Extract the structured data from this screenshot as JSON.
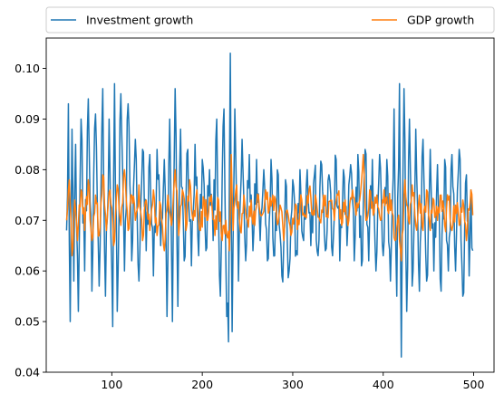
{
  "chart_data": {
    "type": "line",
    "title": "",
    "xlabel": "",
    "ylabel": "",
    "xlim": [
      27.5,
      522.5
    ],
    "ylim": [
      0.04,
      0.106
    ],
    "xticks": [
      100,
      200,
      300,
      400,
      500
    ],
    "xtick_labels": [
      "100",
      "200",
      "300",
      "400",
      "500"
    ],
    "yticks": [
      0.04,
      0.05,
      0.06,
      0.07,
      0.08,
      0.09,
      0.1
    ],
    "ytick_labels": [
      "0.04",
      "0.05",
      "0.06",
      "0.07",
      "0.08",
      "0.09",
      "0.10"
    ],
    "grid": false,
    "legend_placement": "top, above plot, two columns",
    "x_start": 50,
    "x_end": 499,
    "series": [
      {
        "name": "Investment growth",
        "color": "#1f77b4",
        "sampled_points": [
          [
            50,
            0.068
          ],
          [
            52,
            0.093
          ],
          [
            54,
            0.05
          ],
          [
            56,
            0.088
          ],
          [
            58,
            0.058
          ],
          [
            60,
            0.085
          ],
          [
            63,
            0.052
          ],
          [
            66,
            0.09
          ],
          [
            70,
            0.06
          ],
          [
            74,
            0.094
          ],
          [
            78,
            0.056
          ],
          [
            82,
            0.091
          ],
          [
            86,
            0.057
          ],
          [
            90,
            0.096
          ],
          [
            93,
            0.055
          ],
          [
            97,
            0.09
          ],
          [
            101,
            0.049
          ],
          [
            103,
            0.097
          ],
          [
            106,
            0.052
          ],
          [
            110,
            0.095
          ],
          [
            114,
            0.06
          ],
          [
            118,
            0.093
          ],
          [
            122,
            0.062
          ],
          [
            126,
            0.086
          ],
          [
            130,
            0.058
          ],
          [
            134,
            0.084
          ],
          [
            138,
            0.064
          ],
          [
            142,
            0.083
          ],
          [
            146,
            0.059
          ],
          [
            150,
            0.084
          ],
          [
            154,
            0.065
          ],
          [
            158,
            0.082
          ],
          [
            161,
            0.051
          ],
          [
            164,
            0.09
          ],
          [
            167,
            0.05
          ],
          [
            170,
            0.096
          ],
          [
            173,
            0.053
          ],
          [
            176,
            0.088
          ],
          [
            180,
            0.062
          ],
          [
            184,
            0.084
          ],
          [
            188,
            0.061
          ],
          [
            192,
            0.085
          ],
          [
            196,
            0.063
          ],
          [
            200,
            0.082
          ],
          [
            204,
            0.064
          ],
          [
            208,
            0.08
          ],
          [
            212,
            0.066
          ],
          [
            216,
            0.09
          ],
          [
            220,
            0.055
          ],
          [
            224,
            0.092
          ],
          [
            227,
            0.051
          ],
          [
            229,
            0.046
          ],
          [
            231,
            0.103
          ],
          [
            233,
            0.048
          ],
          [
            236,
            0.092
          ],
          [
            240,
            0.058
          ],
          [
            244,
            0.086
          ],
          [
            248,
            0.062
          ],
          [
            252,
            0.083
          ],
          [
            256,
            0.064
          ],
          [
            260,
            0.082
          ],
          [
            264,
            0.066
          ],
          [
            268,
            0.08
          ],
          [
            272,
            0.062
          ],
          [
            276,
            0.082
          ],
          [
            280,
            0.063
          ],
          [
            284,
            0.079
          ],
          [
            288,
            0.059
          ],
          [
            292,
            0.078
          ],
          [
            296,
            0.06
          ],
          [
            300,
            0.078
          ],
          [
            304,
            0.064
          ],
          [
            308,
            0.08
          ],
          [
            312,
            0.066
          ],
          [
            316,
            0.08
          ],
          [
            320,
            0.065
          ],
          [
            324,
            0.079
          ],
          [
            328,
            0.063
          ],
          [
            332,
            0.081
          ],
          [
            336,
            0.064
          ],
          [
            340,
            0.079
          ],
          [
            344,
            0.063
          ],
          [
            348,
            0.082
          ],
          [
            352,
            0.062
          ],
          [
            356,
            0.08
          ],
          [
            360,
            0.065
          ],
          [
            364,
            0.081
          ],
          [
            368,
            0.062
          ],
          [
            372,
            0.083
          ],
          [
            376,
            0.061
          ],
          [
            380,
            0.084
          ],
          [
            384,
            0.062
          ],
          [
            388,
            0.082
          ],
          [
            392,
            0.06
          ],
          [
            396,
            0.083
          ],
          [
            400,
            0.063
          ],
          [
            404,
            0.082
          ],
          [
            408,
            0.058
          ],
          [
            412,
            0.092
          ],
          [
            415,
            0.055
          ],
          [
            418,
            0.097
          ],
          [
            420,
            0.043
          ],
          [
            423,
            0.096
          ],
          [
            426,
            0.052
          ],
          [
            429,
            0.09
          ],
          [
            432,
            0.057
          ],
          [
            436,
            0.088
          ],
          [
            440,
            0.056
          ],
          [
            444,
            0.086
          ],
          [
            448,
            0.058
          ],
          [
            452,
            0.084
          ],
          [
            456,
            0.06
          ],
          [
            460,
            0.081
          ],
          [
            464,
            0.056
          ],
          [
            468,
            0.082
          ],
          [
            472,
            0.06
          ],
          [
            476,
            0.083
          ],
          [
            480,
            0.06
          ],
          [
            484,
            0.084
          ],
          [
            488,
            0.055
          ],
          [
            492,
            0.079
          ],
          [
            495,
            0.059
          ],
          [
            497,
            0.076
          ],
          [
            499,
            0.064
          ]
        ]
      },
      {
        "name": "GDP growth",
        "color": "#ff7f0e",
        "sampled_points": [
          [
            50,
            0.07
          ],
          [
            53,
            0.078
          ],
          [
            56,
            0.063
          ],
          [
            59,
            0.074
          ],
          [
            62,
            0.066
          ],
          [
            66,
            0.076
          ],
          [
            70,
            0.068
          ],
          [
            74,
            0.078
          ],
          [
            78,
            0.066
          ],
          [
            82,
            0.075
          ],
          [
            86,
            0.067
          ],
          [
            90,
            0.079
          ],
          [
            94,
            0.068
          ],
          [
            98,
            0.076
          ],
          [
            102,
            0.065
          ],
          [
            106,
            0.077
          ],
          [
            110,
            0.069
          ],
          [
            114,
            0.08
          ],
          [
            118,
            0.068
          ],
          [
            122,
            0.075
          ],
          [
            126,
            0.07
          ],
          [
            130,
            0.077
          ],
          [
            134,
            0.066
          ],
          [
            138,
            0.074
          ],
          [
            142,
            0.068
          ],
          [
            146,
            0.076
          ],
          [
            150,
            0.067
          ],
          [
            154,
            0.073
          ],
          [
            158,
            0.064
          ],
          [
            162,
            0.075
          ],
          [
            166,
            0.069
          ],
          [
            170,
            0.08
          ],
          [
            174,
            0.067
          ],
          [
            178,
            0.076
          ],
          [
            182,
            0.068
          ],
          [
            186,
            0.078
          ],
          [
            190,
            0.07
          ],
          [
            194,
            0.076
          ],
          [
            198,
            0.068
          ],
          [
            202,
            0.074
          ],
          [
            206,
            0.07
          ],
          [
            210,
            0.075
          ],
          [
            214,
            0.067
          ],
          [
            218,
            0.074
          ],
          [
            222,
            0.066
          ],
          [
            226,
            0.07
          ],
          [
            230,
            0.064
          ],
          [
            232,
            0.083
          ],
          [
            234,
            0.068
          ],
          [
            238,
            0.077
          ],
          [
            242,
            0.068
          ],
          [
            246,
            0.075
          ],
          [
            250,
            0.07
          ],
          [
            254,
            0.074
          ],
          [
            258,
            0.069
          ],
          [
            262,
            0.075
          ],
          [
            266,
            0.071
          ],
          [
            270,
            0.076
          ],
          [
            274,
            0.072
          ],
          [
            278,
            0.075
          ],
          [
            282,
            0.071
          ],
          [
            286,
            0.073
          ],
          [
            290,
            0.066
          ],
          [
            294,
            0.072
          ],
          [
            298,
            0.067
          ],
          [
            302,
            0.071
          ],
          [
            306,
            0.07
          ],
          [
            310,
            0.074
          ],
          [
            314,
            0.071
          ],
          [
            318,
            0.076
          ],
          [
            322,
            0.071
          ],
          [
            326,
            0.074
          ],
          [
            330,
            0.07
          ],
          [
            334,
            0.075
          ],
          [
            338,
            0.071
          ],
          [
            342,
            0.074
          ],
          [
            346,
            0.07
          ],
          [
            350,
            0.075
          ],
          [
            354,
            0.069
          ],
          [
            358,
            0.074
          ],
          [
            362,
            0.07
          ],
          [
            366,
            0.076
          ],
          [
            370,
            0.071
          ],
          [
            374,
            0.074
          ],
          [
            378,
            0.083
          ],
          [
            381,
            0.07
          ],
          [
            385,
            0.076
          ],
          [
            389,
            0.071
          ],
          [
            393,
            0.075
          ],
          [
            397,
            0.07
          ],
          [
            401,
            0.076
          ],
          [
            405,
            0.072
          ],
          [
            409,
            0.074
          ],
          [
            413,
            0.066
          ],
          [
            417,
            0.071
          ],
          [
            420,
            0.062
          ],
          [
            424,
            0.078
          ],
          [
            428,
            0.07
          ],
          [
            432,
            0.077
          ],
          [
            436,
            0.069
          ],
          [
            440,
            0.075
          ],
          [
            444,
            0.068
          ],
          [
            448,
            0.076
          ],
          [
            452,
            0.068
          ],
          [
            456,
            0.074
          ],
          [
            460,
            0.07
          ],
          [
            464,
            0.075
          ],
          [
            468,
            0.069
          ],
          [
            472,
            0.074
          ],
          [
            476,
            0.068
          ],
          [
            480,
            0.073
          ],
          [
            484,
            0.069
          ],
          [
            488,
            0.074
          ],
          [
            492,
            0.066
          ],
          [
            495,
            0.072
          ],
          [
            497,
            0.076
          ],
          [
            499,
            0.071
          ]
        ]
      }
    ]
  }
}
